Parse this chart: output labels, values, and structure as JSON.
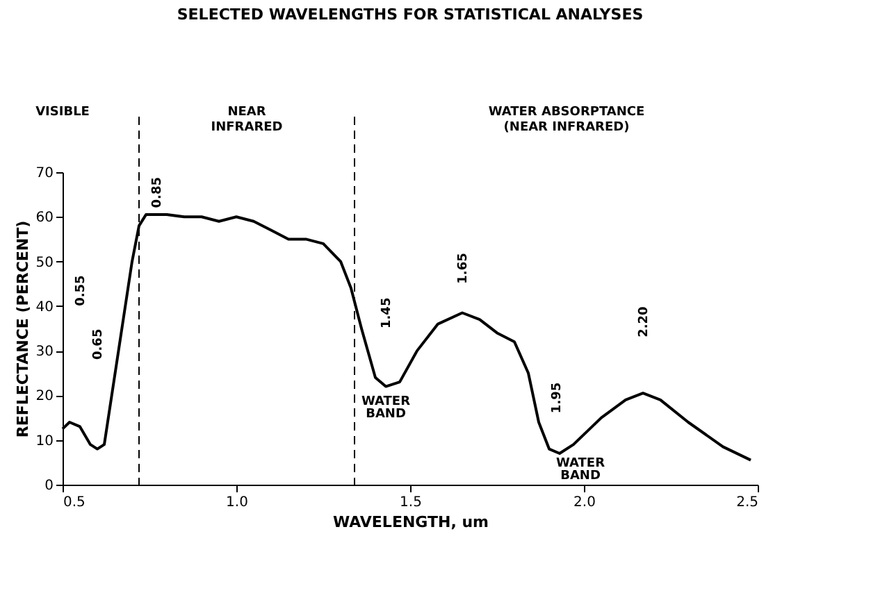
{
  "chart_data": {
    "type": "line",
    "title": "SELECTED WAVELENGTHS FOR STATISTICAL ANALYSES",
    "xlabel": "WAVELENGTH, um",
    "ylabel": "REFLECTANCE (PERCENT)",
    "x": [
      0.5,
      0.52,
      0.55,
      0.58,
      0.6,
      0.62,
      0.7,
      0.72,
      0.74,
      0.8,
      0.85,
      0.9,
      0.95,
      1.0,
      1.05,
      1.1,
      1.15,
      1.2,
      1.25,
      1.3,
      1.33,
      1.36,
      1.4,
      1.43,
      1.47,
      1.52,
      1.58,
      1.65,
      1.7,
      1.75,
      1.8,
      1.84,
      1.87,
      1.9,
      1.93,
      1.97,
      2.05,
      2.12,
      2.17,
      2.22,
      2.3,
      2.4,
      2.48
    ],
    "series": [
      {
        "color": "#000000",
        "values": [
          12.5,
          14,
          13,
          9,
          8,
          9,
          50,
          58,
          60.5,
          60.5,
          60,
          60,
          59,
          60,
          59,
          57,
          55,
          55,
          54,
          50,
          44,
          35,
          24,
          22,
          23,
          30,
          36,
          38.5,
          37,
          34,
          32,
          25,
          14,
          8,
          7,
          9,
          15,
          19,
          20.5,
          19,
          14,
          8.5,
          5.5
        ]
      }
    ],
    "xlim": [
      0.5,
      2.5
    ],
    "xticks": [
      0.5,
      {
        "value": 1,
        "label": "1.0"
      },
      1.5,
      {
        "value": 2,
        "label": "2.0"
      },
      2.5
    ],
    "ylim": [
      0,
      70
    ],
    "yticks": [
      0,
      10,
      20,
      30,
      40,
      50,
      60,
      70
    ],
    "ref_lines": [
      {
        "axis": "x",
        "value": 0.72,
        "line_style": "dashed",
        "color": "#000000"
      },
      {
        "axis": "x",
        "value": 1.34,
        "line_style": "dashed",
        "color": "#000000"
      }
    ],
    "annotations": [
      "VISIBLE",
      "NEAR INFRARED",
      "WATER ABSORPTANCE (NEAR INFRARED)",
      "0.55",
      "0.65",
      "0.85",
      "1.45",
      "1.65",
      "1.95",
      "2.20",
      "WATER BAND",
      "WATER BAND"
    ],
    "grid": false,
    "marker": "none",
    "line_style": "solid"
  }
}
